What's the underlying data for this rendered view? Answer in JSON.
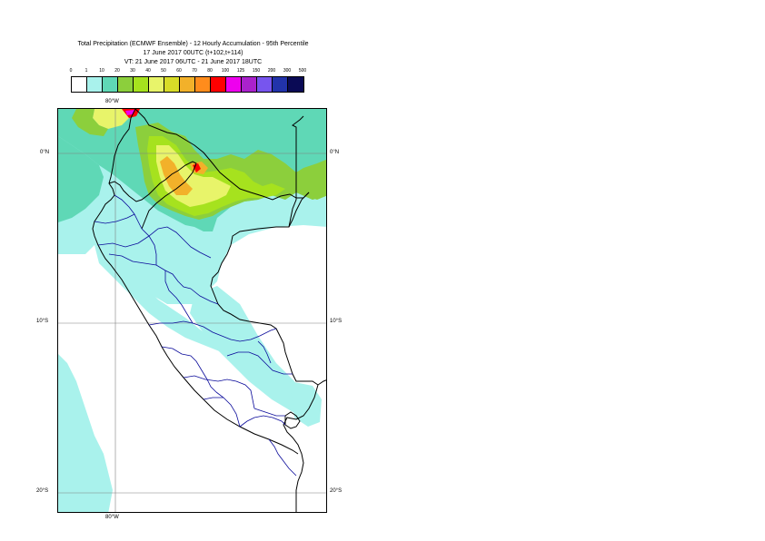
{
  "title": {
    "line1": "Total Precipitation (ECMWF Ensemble) - 12 Hourly Accumulation - 95th Percentile",
    "line2": "17 June 2017 00UTC (t+102,t+114)",
    "line3": "VT: 21 June 2017 06UTC - 21 June 2017 18UTC"
  },
  "legend": {
    "labels": [
      "0",
      "1",
      "10",
      "20",
      "30",
      "40",
      "50",
      "60",
      "70",
      "80",
      "100",
      "125",
      "150",
      "200",
      "300",
      "500"
    ],
    "colors": [
      "#ffffff",
      "#a9f2ec",
      "#5fd8b6",
      "#8ccf3c",
      "#a6e21e",
      "#e8f46a",
      "#d8dc28",
      "#f2b12a",
      "#ff8c1c",
      "#ff0000",
      "#ee00ee",
      "#aa22cc",
      "#7755ee",
      "#2233aa",
      "#0a0a55"
    ]
  },
  "map": {
    "top_lon_label": "80°W",
    "bottom_lon_label": "80°W",
    "lat_labels_left": [
      "0°N",
      "10°S",
      "20°S"
    ],
    "lat_labels_right": [
      "0°N",
      "10°S",
      "20°S"
    ],
    "colors": {
      "light_cyan": "#a9f2ec",
      "teal": "#5fd8b6",
      "green": "#8ccf3c",
      "lime": "#a6e21e",
      "yellow": "#e8f46a",
      "orange": "#f2b12a",
      "red": "#ff0000",
      "magenta": "#ee00ee",
      "coast": "#000000",
      "admin": "#0a0a9a",
      "grid": "#808080"
    }
  }
}
